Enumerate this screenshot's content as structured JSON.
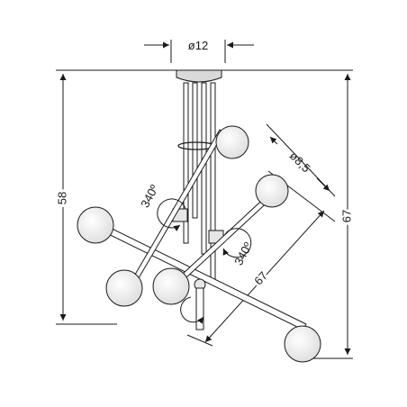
{
  "dimensions": {
    "canopy_diameter": "ø12",
    "globe_diameter": "ø8,5",
    "arm_length": "67",
    "rotation_upper": "340º",
    "rotation_lower": "340º",
    "body_height": "58",
    "total_height": "67"
  },
  "colors": {
    "line": "#1a1a1a",
    "canopy": "#d9d9d9",
    "globe": "#f2f2f2"
  }
}
